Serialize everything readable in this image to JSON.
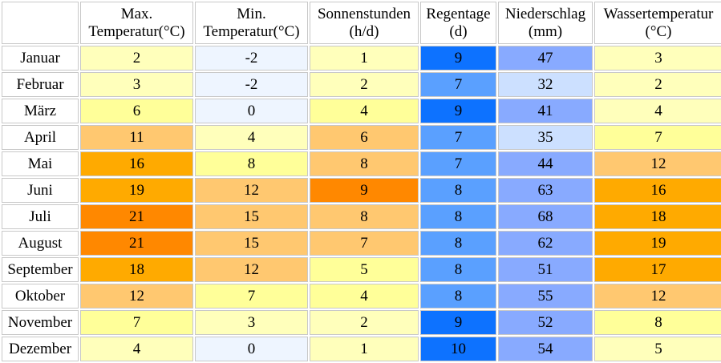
{
  "header": {
    "corner": "",
    "columns": [
      {
        "line1": "Max.",
        "line2": "Temperatur(°C)"
      },
      {
        "line1": "Min.",
        "line2": "Temperatur(°C)"
      },
      {
        "line1": "Sonnenstunden",
        "line2": "(h/d)"
      },
      {
        "line1": "Regentage",
        "line2": "(d)"
      },
      {
        "line1": "Niederschlag",
        "line2": "(mm)"
      },
      {
        "line1": "Wassertemperatur",
        "line2": "(°C)"
      }
    ]
  },
  "rows": [
    {
      "month": "Januar",
      "cells": [
        {
          "value": "2",
          "color": "#ffffbb"
        },
        {
          "value": "-2",
          "color": "#eef5ff"
        },
        {
          "value": "1",
          "color": "#ffffbb"
        },
        {
          "value": "9",
          "color": "#0d72ff"
        },
        {
          "value": "47",
          "color": "#88aaff"
        },
        {
          "value": "3",
          "color": "#ffffbb"
        }
      ]
    },
    {
      "month": "Februar",
      "cells": [
        {
          "value": "3",
          "color": "#ffffbb"
        },
        {
          "value": "-2",
          "color": "#eef5ff"
        },
        {
          "value": "2",
          "color": "#ffffbb"
        },
        {
          "value": "7",
          "color": "#5aa0ff"
        },
        {
          "value": "32",
          "color": "#cce0ff"
        },
        {
          "value": "2",
          "color": "#ffffbb"
        }
      ]
    },
    {
      "month": "März",
      "cells": [
        {
          "value": "6",
          "color": "#ffff99"
        },
        {
          "value": "0",
          "color": "#eef5ff"
        },
        {
          "value": "4",
          "color": "#ffff99"
        },
        {
          "value": "9",
          "color": "#0d72ff"
        },
        {
          "value": "41",
          "color": "#88aaff"
        },
        {
          "value": "4",
          "color": "#ffffbb"
        }
      ]
    },
    {
      "month": "April",
      "cells": [
        {
          "value": "11",
          "color": "#ffc870"
        },
        {
          "value": "4",
          "color": "#ffffbb"
        },
        {
          "value": "6",
          "color": "#ffc870"
        },
        {
          "value": "7",
          "color": "#5aa0ff"
        },
        {
          "value": "35",
          "color": "#cce0ff"
        },
        {
          "value": "7",
          "color": "#ffff99"
        }
      ]
    },
    {
      "month": "Mai",
      "cells": [
        {
          "value": "16",
          "color": "#ffaa00"
        },
        {
          "value": "8",
          "color": "#ffff99"
        },
        {
          "value": "8",
          "color": "#ffc870"
        },
        {
          "value": "7",
          "color": "#5aa0ff"
        },
        {
          "value": "44",
          "color": "#88aaff"
        },
        {
          "value": "12",
          "color": "#ffc870"
        }
      ]
    },
    {
      "month": "Juni",
      "cells": [
        {
          "value": "19",
          "color": "#ffaa00"
        },
        {
          "value": "12",
          "color": "#ffc870"
        },
        {
          "value": "9",
          "color": "#ff8800"
        },
        {
          "value": "8",
          "color": "#5aa0ff"
        },
        {
          "value": "63",
          "color": "#88aaff"
        },
        {
          "value": "16",
          "color": "#ffaa00"
        }
      ]
    },
    {
      "month": "Juli",
      "cells": [
        {
          "value": "21",
          "color": "#ff8800"
        },
        {
          "value": "15",
          "color": "#ffc870"
        },
        {
          "value": "8",
          "color": "#ffc870"
        },
        {
          "value": "8",
          "color": "#5aa0ff"
        },
        {
          "value": "68",
          "color": "#88aaff"
        },
        {
          "value": "18",
          "color": "#ffaa00"
        }
      ]
    },
    {
      "month": "August",
      "cells": [
        {
          "value": "21",
          "color": "#ff8800"
        },
        {
          "value": "15",
          "color": "#ffc870"
        },
        {
          "value": "7",
          "color": "#ffc870"
        },
        {
          "value": "8",
          "color": "#5aa0ff"
        },
        {
          "value": "62",
          "color": "#88aaff"
        },
        {
          "value": "19",
          "color": "#ffaa00"
        }
      ]
    },
    {
      "month": "September",
      "cells": [
        {
          "value": "18",
          "color": "#ffaa00"
        },
        {
          "value": "12",
          "color": "#ffc870"
        },
        {
          "value": "5",
          "color": "#ffff99"
        },
        {
          "value": "8",
          "color": "#5aa0ff"
        },
        {
          "value": "51",
          "color": "#88aaff"
        },
        {
          "value": "17",
          "color": "#ffaa00"
        }
      ]
    },
    {
      "month": "Oktober",
      "cells": [
        {
          "value": "12",
          "color": "#ffc870"
        },
        {
          "value": "7",
          "color": "#ffff99"
        },
        {
          "value": "4",
          "color": "#ffff99"
        },
        {
          "value": "8",
          "color": "#5aa0ff"
        },
        {
          "value": "55",
          "color": "#88aaff"
        },
        {
          "value": "12",
          "color": "#ffc870"
        }
      ]
    },
    {
      "month": "November",
      "cells": [
        {
          "value": "7",
          "color": "#ffff99"
        },
        {
          "value": "3",
          "color": "#ffffbb"
        },
        {
          "value": "2",
          "color": "#ffffbb"
        },
        {
          "value": "9",
          "color": "#0d72ff"
        },
        {
          "value": "52",
          "color": "#88aaff"
        },
        {
          "value": "8",
          "color": "#ffff99"
        }
      ]
    },
    {
      "month": "Dezember",
      "cells": [
        {
          "value": "4",
          "color": "#ffffbb"
        },
        {
          "value": "0",
          "color": "#eef5ff"
        },
        {
          "value": "1",
          "color": "#ffffbb"
        },
        {
          "value": "10",
          "color": "#0d72ff"
        },
        {
          "value": "54",
          "color": "#88aaff"
        },
        {
          "value": "5",
          "color": "#ffffbb"
        }
      ]
    }
  ]
}
